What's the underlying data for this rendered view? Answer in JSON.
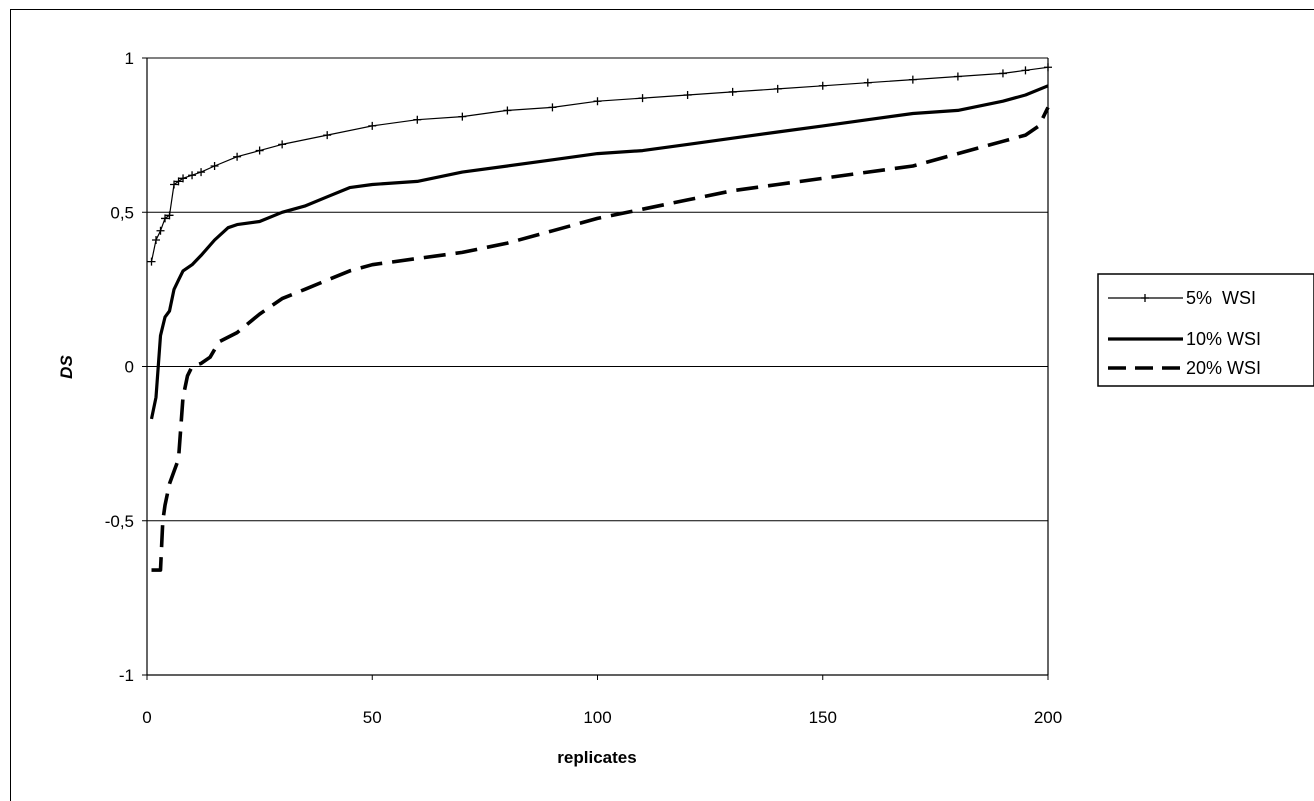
{
  "chart_data": {
    "type": "line",
    "title": "",
    "xlabel": "replicates",
    "ylabel": "DS",
    "xlim": [
      0,
      200
    ],
    "ylim": [
      -1,
      1
    ],
    "x_ticks": [
      "0",
      "50",
      "100",
      "150",
      "200"
    ],
    "y_ticks": [
      "-1",
      "-0,5",
      "0",
      "0,5",
      "1"
    ],
    "grid": "horizontal",
    "legend_position": "right",
    "series": [
      {
        "name": "5%  WSI",
        "style": "line-with-plus-markers",
        "color": "#000000",
        "points": [
          [
            1,
            0.34
          ],
          [
            2,
            0.41
          ],
          [
            3,
            0.44
          ],
          [
            4,
            0.48
          ],
          [
            5,
            0.49
          ],
          [
            6,
            0.59
          ],
          [
            7,
            0.6
          ],
          [
            8,
            0.61
          ],
          [
            10,
            0.62
          ],
          [
            12,
            0.63
          ],
          [
            15,
            0.65
          ],
          [
            20,
            0.68
          ],
          [
            25,
            0.7
          ],
          [
            30,
            0.72
          ],
          [
            40,
            0.75
          ],
          [
            50,
            0.78
          ],
          [
            60,
            0.8
          ],
          [
            70,
            0.81
          ],
          [
            80,
            0.83
          ],
          [
            90,
            0.84
          ],
          [
            100,
            0.86
          ],
          [
            110,
            0.87
          ],
          [
            120,
            0.88
          ],
          [
            130,
            0.89
          ],
          [
            140,
            0.9
          ],
          [
            150,
            0.91
          ],
          [
            160,
            0.92
          ],
          [
            170,
            0.93
          ],
          [
            180,
            0.94
          ],
          [
            190,
            0.95
          ],
          [
            195,
            0.96
          ],
          [
            200,
            0.97
          ]
        ]
      },
      {
        "name": "10% WSI",
        "style": "solid",
        "color": "#000000",
        "points": [
          [
            1,
            -0.17
          ],
          [
            2,
            -0.1
          ],
          [
            3,
            0.1
          ],
          [
            4,
            0.16
          ],
          [
            5,
            0.18
          ],
          [
            6,
            0.25
          ],
          [
            7,
            0.28
          ],
          [
            8,
            0.31
          ],
          [
            10,
            0.33
          ],
          [
            12,
            0.36
          ],
          [
            15,
            0.41
          ],
          [
            18,
            0.45
          ],
          [
            20,
            0.46
          ],
          [
            25,
            0.47
          ],
          [
            30,
            0.5
          ],
          [
            35,
            0.52
          ],
          [
            40,
            0.55
          ],
          [
            45,
            0.58
          ],
          [
            50,
            0.59
          ],
          [
            60,
            0.6
          ],
          [
            70,
            0.63
          ],
          [
            80,
            0.65
          ],
          [
            90,
            0.67
          ],
          [
            100,
            0.69
          ],
          [
            110,
            0.7
          ],
          [
            120,
            0.72
          ],
          [
            130,
            0.74
          ],
          [
            140,
            0.76
          ],
          [
            150,
            0.78
          ],
          [
            160,
            0.8
          ],
          [
            170,
            0.82
          ],
          [
            180,
            0.83
          ],
          [
            190,
            0.86
          ],
          [
            195,
            0.88
          ],
          [
            200,
            0.91
          ]
        ]
      },
      {
        "name": "20% WSI",
        "style": "dashed",
        "color": "#000000",
        "points": [
          [
            1,
            -0.66
          ],
          [
            3,
            -0.66
          ],
          [
            3.5,
            -0.5
          ],
          [
            4,
            -0.45
          ],
          [
            5,
            -0.38
          ],
          [
            6,
            -0.34
          ],
          [
            7,
            -0.3
          ],
          [
            8,
            -0.1
          ],
          [
            9,
            -0.03
          ],
          [
            10,
            0.0
          ],
          [
            12,
            0.01
          ],
          [
            14,
            0.03
          ],
          [
            16,
            0.08
          ],
          [
            20,
            0.11
          ],
          [
            25,
            0.17
          ],
          [
            30,
            0.22
          ],
          [
            35,
            0.25
          ],
          [
            40,
            0.28
          ],
          [
            45,
            0.31
          ],
          [
            50,
            0.33
          ],
          [
            60,
            0.35
          ],
          [
            70,
            0.37
          ],
          [
            80,
            0.4
          ],
          [
            90,
            0.44
          ],
          [
            100,
            0.48
          ],
          [
            110,
            0.51
          ],
          [
            120,
            0.54
          ],
          [
            130,
            0.57
          ],
          [
            140,
            0.59
          ],
          [
            150,
            0.61
          ],
          [
            160,
            0.63
          ],
          [
            170,
            0.65
          ],
          [
            180,
            0.69
          ],
          [
            190,
            0.73
          ],
          [
            195,
            0.75
          ],
          [
            198,
            0.78
          ],
          [
            200,
            0.84
          ]
        ]
      }
    ]
  }
}
